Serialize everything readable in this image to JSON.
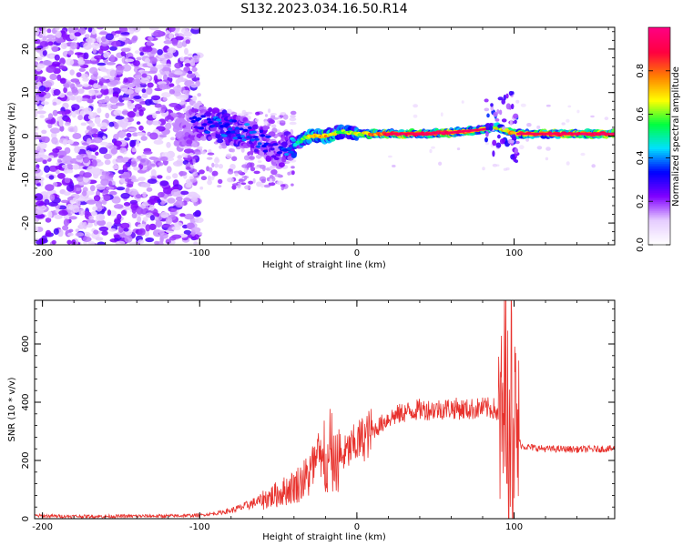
{
  "chart_data": [
    {
      "type": "heatmap",
      "title": "S132.2023.034.16.50.R14",
      "xlabel": "Height of straight line (km)",
      "ylabel": "Frequency (Hz)",
      "xlim": [
        -205,
        164
      ],
      "ylim": [
        -25,
        25
      ],
      "x_ticks": [
        -200,
        -100,
        0,
        100
      ],
      "x_tick_labels": [
        "-200",
        "-100",
        "0",
        "100"
      ],
      "y_ticks": [
        -20,
        -10,
        0,
        10,
        20
      ],
      "y_tick_labels": [
        "-20",
        "-10",
        "0",
        "10",
        "20"
      ],
      "colorbar": {
        "label": "Normalized spectral amplitude",
        "range": [
          0,
          1
        ],
        "ticks": [
          0.0,
          0.2,
          0.4,
          0.6,
          0.8
        ],
        "tick_labels": [
          "0.0",
          "0.2",
          "0.4",
          "0.6",
          "0.8"
        ],
        "colors": [
          "#ffffff",
          "#e6ccff",
          "#8000ff",
          "#0000ff",
          "#00e0ff",
          "#00ff40",
          "#ffff00",
          "#ff8000",
          "#ff0040",
          "#ff0080"
        ]
      },
      "regions": [
        {
          "x_range": [
            -205,
            -108
          ],
          "y_range": [
            -25,
            25
          ],
          "description_value": 0.2
        },
        {
          "x_range": [
            -108,
            -40
          ],
          "y_range": [
            -10,
            6
          ],
          "description_value": 0.35
        },
        {
          "x_range": [
            -40,
            164
          ],
          "y_range": [
            -1,
            2
          ],
          "description_value": 0.9
        }
      ],
      "ridge": {
        "x": [
          -115,
          -100,
          -85,
          -70,
          -60,
          -50,
          -40,
          -30,
          -20,
          -10,
          0,
          20,
          40,
          60,
          80,
          90,
          100,
          110,
          130,
          164
        ],
        "y": [
          1,
          3,
          2,
          1,
          -1,
          -4,
          -2,
          0,
          0,
          1,
          0.5,
          0.5,
          0.5,
          0.8,
          1.5,
          2,
          0.5,
          0.5,
          0.5,
          0.5
        ],
        "amplitude": [
          0.2,
          0.35,
          0.4,
          0.4,
          0.35,
          0.3,
          0.5,
          0.7,
          0.8,
          0.6,
          0.7,
          0.9,
          0.9,
          0.9,
          0.75,
          0.7,
          0.8,
          0.85,
          0.9,
          0.9
        ]
      }
    },
    {
      "type": "line",
      "xlabel": "Height of straight line (km)",
      "ylabel": "SNR (10 * v/v)",
      "xlim": [
        -205,
        164
      ],
      "ylim": [
        0,
        750
      ],
      "x_ticks": [
        -200,
        -100,
        0,
        100
      ],
      "x_tick_labels": [
        "-200",
        "-100",
        "0",
        "100"
      ],
      "y_ticks": [
        0,
        200,
        400,
        600
      ],
      "y_tick_labels": [
        "0",
        "200",
        "400",
        "600"
      ],
      "color": "#e8322d",
      "series": [
        {
          "name": "SNR",
          "x": [
            -205,
            -180,
            -160,
            -140,
            -120,
            -100,
            -90,
            -80,
            -70,
            -60,
            -50,
            -40,
            -30,
            -25,
            -20,
            -15,
            -10,
            -5,
            0,
            10,
            20,
            30,
            40,
            50,
            60,
            70,
            80,
            88,
            92,
            95,
            97,
            99,
            100,
            102,
            105,
            110,
            120,
            140,
            164
          ],
          "y": [
            10,
            8,
            8,
            9,
            9,
            12,
            18,
            28,
            45,
            65,
            85,
            110,
            150,
            200,
            165,
            185,
            210,
            235,
            260,
            300,
            345,
            365,
            375,
            375,
            380,
            375,
            380,
            378,
            300,
            420,
            250,
            480,
            300,
            280,
            250,
            245,
            240,
            238,
            240
          ]
        }
      ]
    }
  ]
}
